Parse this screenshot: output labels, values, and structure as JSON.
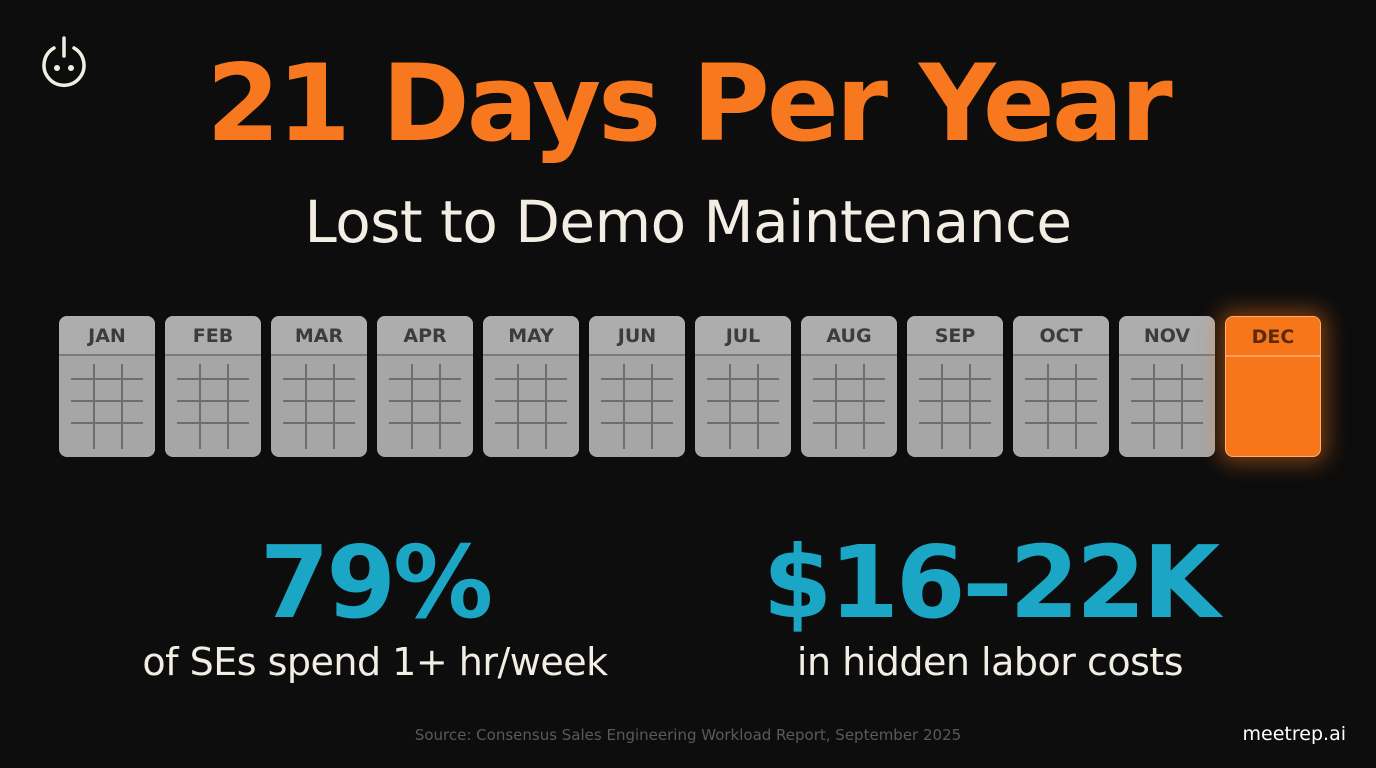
{
  "logo": {
    "icon": "power-face-icon"
  },
  "headline": {
    "title": "21 Days Per Year",
    "subtitle": "Lost to Demo Maintenance"
  },
  "calendar": {
    "months": [
      {
        "label": "JAN",
        "highlighted": false
      },
      {
        "label": "FEB",
        "highlighted": false
      },
      {
        "label": "MAR",
        "highlighted": false
      },
      {
        "label": "APR",
        "highlighted": false
      },
      {
        "label": "MAY",
        "highlighted": false
      },
      {
        "label": "JUN",
        "highlighted": false
      },
      {
        "label": "JUL",
        "highlighted": false
      },
      {
        "label": "AUG",
        "highlighted": false
      },
      {
        "label": "SEP",
        "highlighted": false
      },
      {
        "label": "OCT",
        "highlighted": false
      },
      {
        "label": "NOV",
        "highlighted": false
      },
      {
        "label": "DEC",
        "highlighted": true
      }
    ]
  },
  "stats": [
    {
      "value": "79%",
      "label": "of SEs spend 1+ hr/week"
    },
    {
      "value": "$16–22K",
      "label": "in hidden labor costs"
    }
  ],
  "footer": {
    "source": "Source: Consensus Sales Engineering Workload Report, September 2025",
    "brand": "meetrep.ai"
  },
  "colors": {
    "background": "#0d0d0d",
    "accent_orange": "#f7781e",
    "accent_cyan": "#1aa6c4",
    "text_light": "#f2eee3",
    "month_gray": "#a6a6a6"
  }
}
